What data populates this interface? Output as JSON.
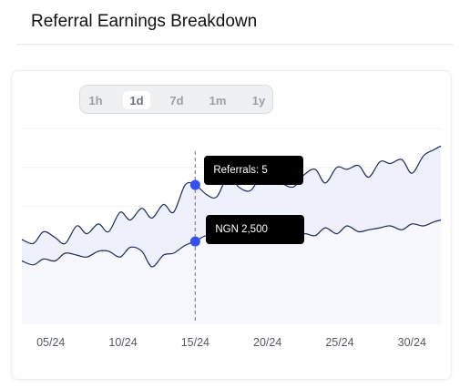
{
  "header": {
    "title": "Referral Earnings Breakdown"
  },
  "range_selector": {
    "options": [
      "1h",
      "1d",
      "7d",
      "1m",
      "1y"
    ],
    "selected": "1d"
  },
  "tooltips": {
    "referrals": "Referrals: 5",
    "earnings": "NGN 2,500"
  },
  "colors": {
    "line": "#1e2a5a",
    "area": "#eef0fc",
    "marker": "#3450f0",
    "tooltip_bg": "#000000",
    "crosshair": "#8a8f99"
  },
  "chart_data": {
    "type": "area",
    "x_ticks": [
      "05/24",
      "10/24",
      "15/24",
      "20/24",
      "25/24",
      "30/24"
    ],
    "x_range": [
      3,
      32
    ],
    "y_range": [
      0,
      10
    ],
    "y_tick_labels_shown": false,
    "grid": "horizontal",
    "crosshair_at": 15,
    "series": [
      {
        "x": [
          3,
          3.8,
          4.5,
          5.3,
          6,
          6.8,
          7.5,
          8.3,
          9,
          9.8,
          10.5,
          11.3,
          12,
          12.8,
          13.5,
          14.3,
          15,
          15.8,
          16.5,
          17.3,
          18,
          18.8,
          19.5,
          20.3,
          21,
          21.8,
          22.5,
          23.3,
          24,
          24.8,
          25.5,
          26.3,
          27,
          27.8,
          28.5,
          29.3,
          30,
          30.8,
          31.5,
          32
        ],
        "y": [
          4.3,
          4.1,
          4.7,
          4.4,
          4.1,
          5.0,
          4.6,
          5.1,
          4.7,
          5.7,
          5.3,
          5.9,
          5.4,
          6.1,
          5.7,
          7.1,
          7.1,
          6.6,
          6.5,
          7.6,
          7.0,
          6.8,
          7.5,
          7.8,
          7.2,
          7.0,
          7.6,
          7.9,
          7.2,
          8.0,
          7.9,
          8.1,
          7.5,
          8.3,
          8.2,
          8.4,
          7.7,
          8.6,
          8.9,
          9.1
        ]
      },
      {
        "x": [
          3,
          3.8,
          4.5,
          5.3,
          6,
          6.8,
          7.5,
          8.3,
          9,
          9.8,
          10.5,
          11.3,
          12,
          12.8,
          13.5,
          14.3,
          15,
          15.8,
          16.5,
          17.3,
          18,
          18.8,
          19.5,
          20.3,
          21,
          21.8,
          22.5,
          23.3,
          24,
          24.8,
          25.5,
          26.3,
          27,
          27.8,
          28.5,
          29.3,
          30,
          30.8,
          31.5,
          32
        ],
        "y": [
          3.2,
          3.0,
          3.3,
          3.2,
          3.6,
          3.5,
          3.4,
          3.7,
          3.7,
          3.4,
          3.9,
          3.7,
          2.9,
          3.5,
          3.6,
          4.0,
          4.2,
          4.5,
          4.2,
          4.3,
          4.9,
          4.4,
          4.5,
          4.2,
          4.7,
          4.3,
          4.6,
          4.5,
          4.9,
          4.6,
          5.0,
          4.7,
          4.8,
          4.9,
          5.0,
          4.8,
          5.1,
          5.0,
          5.2,
          5.3
        ]
      }
    ]
  }
}
